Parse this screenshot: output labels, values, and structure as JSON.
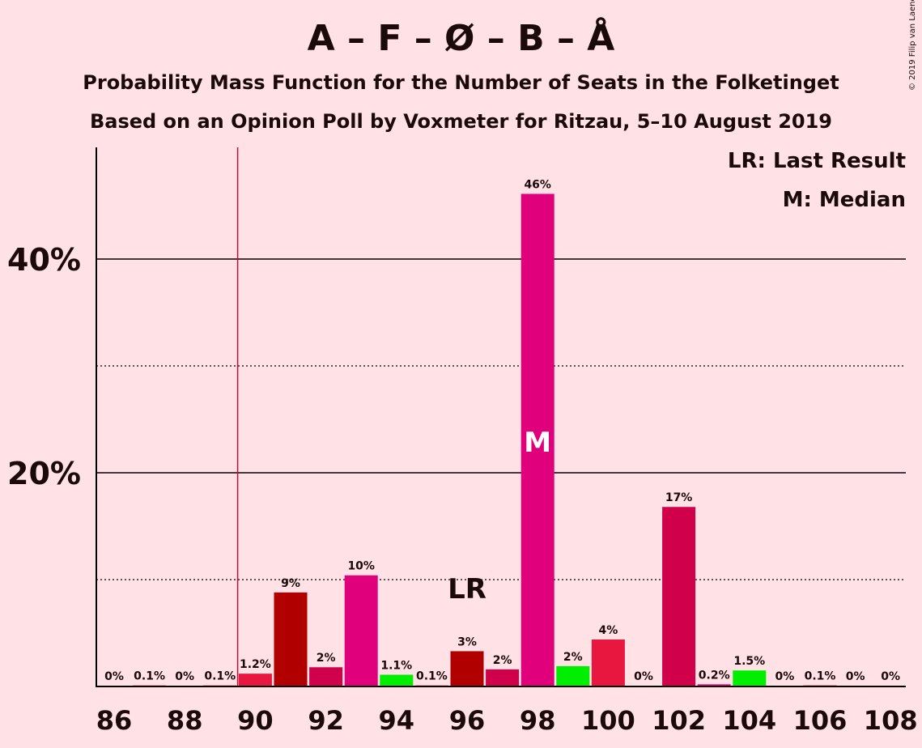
{
  "title": "A – F – Ø – B – Å",
  "subtitle1": "Probability Mass Function for the Number of Seats in the Folketinget",
  "subtitle2": "Based on an Opinion Poll by Voxmeter for Ritzau, 5–10 August 2019",
  "copyright": "© 2019 Filip van Laenen",
  "legend": {
    "lr": "LR: Last Result",
    "m": "M: Median"
  },
  "markers": {
    "lr_label": "LR",
    "median_label": "M"
  },
  "colors": {
    "background": "#FFE1E6",
    "dark_red": "#B00000",
    "crimson": "#E8173F",
    "magenta": "#E0007C",
    "green": "#00EE00",
    "deep_pink": "#D0004A"
  },
  "chart_data": {
    "type": "bar",
    "title": "A – F – Ø – B – Å",
    "xlabel": "",
    "ylabel": "",
    "ylim": [
      0,
      50
    ],
    "y_ticks": [
      {
        "value": 20,
        "label": "20%"
      },
      {
        "value": 40,
        "label": "40%"
      }
    ],
    "x_tick_labels": [
      "86",
      "88",
      "90",
      "92",
      "94",
      "96",
      "98",
      "100",
      "102",
      "104",
      "106",
      "108"
    ],
    "last_result": 89.5,
    "median": 98,
    "bars": [
      {
        "seats": 86,
        "value": 0,
        "label": "0%",
        "color": "#E8173F"
      },
      {
        "seats": 87,
        "value": 0.1,
        "label": "0.1%",
        "color": "#E8173F"
      },
      {
        "seats": 88,
        "value": 0,
        "label": "0%",
        "color": "#E8173F"
      },
      {
        "seats": 89,
        "value": 0.1,
        "label": "0.1%",
        "color": "#E8173F"
      },
      {
        "seats": 90,
        "value": 1.2,
        "label": "1.2%",
        "color": "#E8173F"
      },
      {
        "seats": 91,
        "value": 8.8,
        "label": "9%",
        "color": "#B00000"
      },
      {
        "seats": 92,
        "value": 1.8,
        "label": "2%",
        "color": "#D0004A"
      },
      {
        "seats": 93,
        "value": 10.4,
        "label": "10%",
        "color": "#E0007C"
      },
      {
        "seats": 94,
        "value": 1.1,
        "label": "1.1%",
        "color": "#00EE00"
      },
      {
        "seats": 95,
        "value": 0.1,
        "label": "0.1%",
        "color": "#E8173F"
      },
      {
        "seats": 96,
        "value": 3.3,
        "label": "3%",
        "color": "#B00000"
      },
      {
        "seats": 97,
        "value": 1.6,
        "label": "2%",
        "color": "#D0004A"
      },
      {
        "seats": 98,
        "value": 46.1,
        "label": "46%",
        "color": "#E0007C"
      },
      {
        "seats": 99,
        "value": 1.9,
        "label": "2%",
        "color": "#00EE00"
      },
      {
        "seats": 100,
        "value": 4.4,
        "label": "4%",
        "color": "#E8173F"
      },
      {
        "seats": 101,
        "value": 0,
        "label": "0%",
        "color": "#B00000"
      },
      {
        "seats": 102,
        "value": 16.8,
        "label": "17%",
        "color": "#D0004A"
      },
      {
        "seats": 103,
        "value": 0.2,
        "label": "0.2%",
        "color": "#E0007C"
      },
      {
        "seats": 104,
        "value": 1.5,
        "label": "1.5%",
        "color": "#00EE00"
      },
      {
        "seats": 105,
        "value": 0,
        "label": "0%",
        "color": "#E8173F"
      },
      {
        "seats": 106,
        "value": 0.1,
        "label": "0.1%",
        "color": "#B00000"
      },
      {
        "seats": 107,
        "value": 0,
        "label": "0%",
        "color": "#D0004A"
      },
      {
        "seats": 108,
        "value": 0,
        "label": "0%",
        "color": "#E0007C"
      }
    ]
  }
}
